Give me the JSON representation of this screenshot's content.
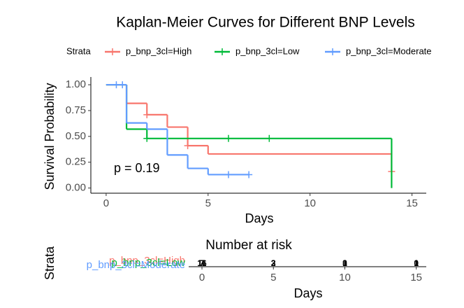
{
  "chart_data": {
    "type": "step",
    "title": "Kaplan-Meier Curves for Different BNP Levels",
    "legend_title": "Strata",
    "xlabel": "Days",
    "ylabel": "Survival Probability",
    "annotation": "p = 0.19",
    "xlim": [
      -0.75,
      15.7
    ],
    "xticks": [
      0,
      5,
      10,
      15
    ],
    "ylim": [
      -0.05,
      1.075
    ],
    "yticks": [
      {
        "value": 0,
        "label": "0.00"
      },
      {
        "value": 0.25,
        "label": "0.25"
      },
      {
        "value": 0.5,
        "label": "0.50"
      },
      {
        "value": 0.75,
        "label": "0.75"
      },
      {
        "value": 1,
        "label": "1.00"
      }
    ],
    "series": [
      {
        "name": "p_bnp_3cl=High",
        "color": "#F8766D",
        "x": [
          0,
          1,
          2,
          3,
          4,
          5,
          14
        ],
        "values": [
          1,
          0.82,
          0.71,
          0.59,
          0.41,
          0.33,
          0.16
        ],
        "censor_x": [
          2,
          4,
          14
        ],
        "censor_values": [
          0.71,
          0.41,
          0.16
        ]
      },
      {
        "name": "p_bnp_3cl=Low",
        "color": "#00BA38",
        "x": [
          0,
          1,
          2,
          14
        ],
        "values": [
          1,
          0.57,
          0.48,
          0
        ],
        "censor_x": [
          2,
          6,
          8
        ],
        "censor_values": [
          0.48,
          0.48,
          0.48
        ]
      },
      {
        "name": "p_bnp_3cl=Moderate",
        "color": "#619CFF",
        "x": [
          0,
          1,
          2,
          3,
          4,
          5,
          7
        ],
        "values": [
          1,
          0.63,
          0.57,
          0.32,
          0.19,
          0.13,
          0.13
        ],
        "censor_x": [
          0.5,
          0.8,
          6,
          7
        ],
        "censor_values": [
          1,
          1,
          0.13,
          0.13
        ]
      }
    ],
    "risk_table": {
      "title": "Number at risk",
      "ylabel": "Strata",
      "xlabel": "Days",
      "xlim": [
        -0.93,
        15.7
      ],
      "xticks": [
        0,
        5,
        10,
        15
      ],
      "counts": [
        [
          11,
          3,
          1,
          1
        ],
        [
          7,
          3,
          3,
          1
        ],
        [
          16,
          2,
          0,
          0
        ]
      ]
    }
  }
}
